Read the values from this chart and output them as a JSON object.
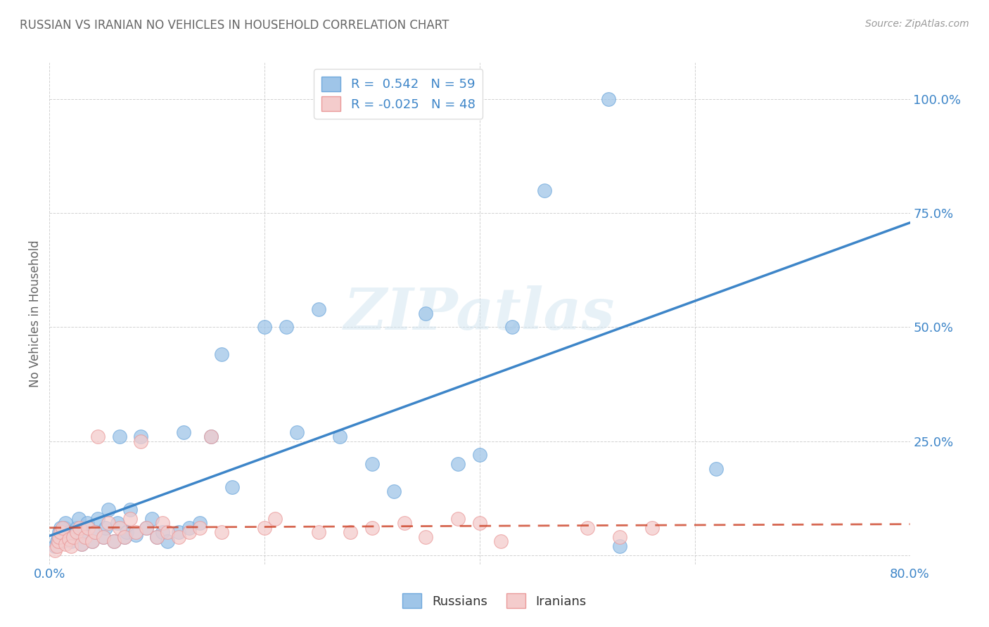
{
  "title": "RUSSIAN VS IRANIAN NO VEHICLES IN HOUSEHOLD CORRELATION CHART",
  "source": "Source: ZipAtlas.com",
  "ylabel": "No Vehicles in Household",
  "xlim": [
    0.0,
    0.8
  ],
  "ylim": [
    -0.02,
    1.08
  ],
  "xtick_positions": [
    0.0,
    0.2,
    0.4,
    0.6,
    0.8
  ],
  "xticklabels": [
    "0.0%",
    "",
    "",
    "",
    "80.0%"
  ],
  "ytick_positions": [
    0.0,
    0.25,
    0.5,
    0.75,
    1.0
  ],
  "yticklabels": [
    "",
    "25.0%",
    "50.0%",
    "75.0%",
    "100.0%"
  ],
  "russian_color": "#9fc5e8",
  "russian_edge_color": "#6fa8dc",
  "iranian_color": "#f4cccc",
  "iranian_edge_color": "#ea9999",
  "russian_line_color": "#3d85c8",
  "iranian_line_color": "#cc4125",
  "background_color": "#ffffff",
  "grid_color": "#cccccc",
  "watermark": "ZIPatlas",
  "legend_R_russian": "R =  0.542",
  "legend_N_russian": "N = 59",
  "legend_R_iranian": "R = -0.025",
  "legend_N_iranian": "N = 48",
  "tick_color": "#3d85c8",
  "title_color": "#666666",
  "source_color": "#999999",
  "ylabel_color": "#666666",
  "russian_x": [
    0.005,
    0.007,
    0.008,
    0.009,
    0.01,
    0.012,
    0.013,
    0.014,
    0.015,
    0.016,
    0.018,
    0.02,
    0.022,
    0.025,
    0.027,
    0.03,
    0.032,
    0.035,
    0.04,
    0.042,
    0.045,
    0.05,
    0.052,
    0.055,
    0.06,
    0.063,
    0.065,
    0.07,
    0.072,
    0.075,
    0.08,
    0.085,
    0.09,
    0.095,
    0.1,
    0.105,
    0.11,
    0.12,
    0.125,
    0.13,
    0.14,
    0.15,
    0.16,
    0.17,
    0.2,
    0.22,
    0.23,
    0.25,
    0.27,
    0.3,
    0.32,
    0.35,
    0.38,
    0.4,
    0.43,
    0.46,
    0.52,
    0.53,
    0.62
  ],
  "russian_y": [
    0.02,
    0.03,
    0.04,
    0.05,
    0.06,
    0.03,
    0.04,
    0.06,
    0.07,
    0.04,
    0.05,
    0.03,
    0.04,
    0.06,
    0.08,
    0.025,
    0.05,
    0.07,
    0.03,
    0.05,
    0.08,
    0.04,
    0.06,
    0.1,
    0.03,
    0.07,
    0.26,
    0.04,
    0.05,
    0.1,
    0.045,
    0.26,
    0.06,
    0.08,
    0.04,
    0.05,
    0.03,
    0.05,
    0.27,
    0.06,
    0.07,
    0.26,
    0.44,
    0.15,
    0.5,
    0.5,
    0.27,
    0.54,
    0.26,
    0.2,
    0.14,
    0.53,
    0.2,
    0.22,
    0.5,
    0.8,
    1.0,
    0.02,
    0.19
  ],
  "iranian_x": [
    0.005,
    0.007,
    0.008,
    0.009,
    0.01,
    0.012,
    0.015,
    0.018,
    0.02,
    0.022,
    0.025,
    0.028,
    0.03,
    0.033,
    0.036,
    0.04,
    0.042,
    0.045,
    0.05,
    0.055,
    0.06,
    0.065,
    0.07,
    0.075,
    0.08,
    0.085,
    0.09,
    0.1,
    0.105,
    0.11,
    0.12,
    0.13,
    0.14,
    0.15,
    0.16,
    0.2,
    0.21,
    0.25,
    0.28,
    0.3,
    0.33,
    0.35,
    0.38,
    0.4,
    0.42,
    0.5,
    0.53,
    0.56
  ],
  "iranian_y": [
    0.01,
    0.02,
    0.03,
    0.04,
    0.05,
    0.06,
    0.025,
    0.035,
    0.02,
    0.04,
    0.05,
    0.06,
    0.025,
    0.04,
    0.06,
    0.03,
    0.05,
    0.26,
    0.04,
    0.07,
    0.03,
    0.06,
    0.04,
    0.08,
    0.05,
    0.25,
    0.06,
    0.04,
    0.07,
    0.05,
    0.04,
    0.05,
    0.06,
    0.26,
    0.05,
    0.06,
    0.08,
    0.05,
    0.05,
    0.06,
    0.07,
    0.04,
    0.08,
    0.07,
    0.03,
    0.06,
    0.04,
    0.06
  ]
}
